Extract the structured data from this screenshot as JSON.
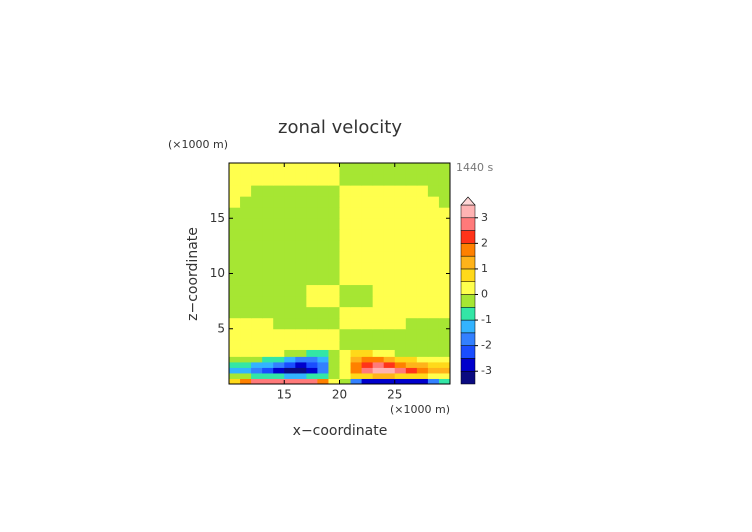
{
  "chart_data": {
    "type": "contour",
    "title": "zonal velocity",
    "x_label": "x−coordinate",
    "y_label": "z−coordinate",
    "x_unit": "(×1000 m)",
    "y_unit": "(×1000 m)",
    "time_label": "1440 s",
    "xlim": [
      10,
      30
    ],
    "ylim": [
      0,
      20
    ],
    "xticks": [
      15,
      20,
      25
    ],
    "yticks": [
      5,
      10,
      15
    ],
    "x": [
      10.5,
      11.5,
      12.5,
      13.5,
      14.5,
      15.5,
      16.5,
      17.5,
      18.5,
      19.5,
      20.5,
      21.5,
      22.5,
      23.5,
      24.5,
      25.5,
      26.5,
      27.5,
      28.5,
      29.5
    ],
    "y": [
      0.25,
      0.75,
      1.25,
      1.75,
      2.25,
      2.75,
      3.5,
      4.5,
      5.5,
      6.5,
      7.5,
      8.5,
      9.5,
      10.5,
      11.5,
      12.5,
      13.5,
      14.5,
      15.5,
      16.5,
      17.5,
      18.5,
      19.5
    ],
    "z": [
      [
        0.7,
        1.7,
        2.7,
        2.7,
        2.7,
        2.7,
        2.7,
        2.7,
        1.7,
        0.2,
        -0.2,
        -1.7,
        -2.7,
        -2.7,
        -2.7,
        -2.7,
        -2.7,
        -2.7,
        -1.7,
        -0.7
      ],
      [
        -0.2,
        -0.2,
        -0.7,
        -0.7,
        -0.7,
        -1.2,
        -1.2,
        -0.7,
        -0.7,
        -0.2,
        0.2,
        0.7,
        0.7,
        1.2,
        1.2,
        0.7,
        0.7,
        0.7,
        0.2,
        0.2
      ],
      [
        -1.2,
        -1.2,
        -1.7,
        -2.2,
        -2.7,
        -3.2,
        -3.2,
        -2.7,
        -1.7,
        -0.2,
        0.2,
        1.7,
        2.7,
        3.2,
        3.2,
        2.7,
        2.2,
        1.7,
        1.2,
        1.2
      ],
      [
        -0.7,
        -0.7,
        -1.2,
        -1.2,
        -1.7,
        -2.2,
        -2.7,
        -2.2,
        -1.7,
        -0.2,
        0.2,
        1.7,
        2.2,
        2.7,
        2.2,
        1.7,
        1.2,
        1.2,
        0.7,
        0.7
      ],
      [
        -0.2,
        -0.2,
        -0.2,
        -0.7,
        -0.7,
        -1.2,
        -1.7,
        -1.7,
        -1.2,
        -0.2,
        0.2,
        1.2,
        1.7,
        1.7,
        1.2,
        0.7,
        0.7,
        0.2,
        0.2,
        0.2
      ],
      [
        0.2,
        0.2,
        0.2,
        0.2,
        0.2,
        -0.2,
        -0.2,
        -0.7,
        -0.7,
        -0.2,
        0.2,
        0.7,
        0.7,
        0.2,
        0.2,
        -0.2,
        -0.2,
        -0.2,
        -0.2,
        -0.2
      ],
      [
        0.2,
        0.2,
        0.2,
        0.2,
        0.2,
        0.2,
        0.2,
        0.2,
        0.2,
        0.2,
        -0.2,
        -0.2,
        -0.2,
        -0.2,
        -0.2,
        -0.2,
        -0.2,
        -0.2,
        -0.2,
        -0.2
      ],
      [
        0.2,
        0.2,
        0.2,
        0.2,
        0.2,
        0.2,
        0.2,
        0.2,
        0.2,
        0.2,
        -0.2,
        -0.2,
        -0.2,
        -0.2,
        -0.2,
        -0.2,
        -0.2,
        -0.2,
        -0.2,
        -0.2
      ],
      [
        0.2,
        0.2,
        0.2,
        0.2,
        -0.2,
        -0.2,
        -0.2,
        -0.2,
        -0.2,
        -0.2,
        0.2,
        0.2,
        0.2,
        0.2,
        0.2,
        0.2,
        -0.2,
        -0.2,
        -0.2,
        -0.2
      ],
      [
        -0.2,
        -0.2,
        -0.2,
        -0.2,
        -0.2,
        -0.2,
        -0.2,
        -0.2,
        -0.2,
        -0.2,
        0.2,
        0.2,
        0.2,
        0.2,
        0.2,
        0.2,
        0.2,
        0.2,
        0.2,
        0.2
      ],
      [
        -0.2,
        -0.2,
        -0.2,
        -0.2,
        -0.2,
        -0.2,
        -0.2,
        0.2,
        0.2,
        0.2,
        -0.2,
        -0.2,
        -0.2,
        0.2,
        0.2,
        0.2,
        0.2,
        0.2,
        0.2,
        0.2
      ],
      [
        -0.2,
        -0.2,
        -0.2,
        -0.2,
        -0.2,
        -0.2,
        -0.2,
        0.2,
        0.2,
        0.2,
        -0.2,
        -0.2,
        -0.2,
        0.2,
        0.2,
        0.2,
        0.2,
        0.2,
        0.2,
        0.2
      ],
      [
        -0.2,
        -0.2,
        -0.2,
        -0.2,
        -0.2,
        -0.2,
        -0.2,
        -0.2,
        -0.2,
        -0.2,
        0.2,
        0.2,
        0.2,
        0.2,
        0.2,
        0.2,
        0.2,
        0.2,
        0.2,
        0.2
      ],
      [
        -0.2,
        -0.2,
        -0.2,
        -0.2,
        -0.2,
        -0.2,
        -0.2,
        -0.2,
        -0.2,
        -0.2,
        0.2,
        0.2,
        0.2,
        0.2,
        0.2,
        0.2,
        0.2,
        0.2,
        0.2,
        0.2
      ],
      [
        -0.2,
        -0.2,
        -0.2,
        -0.2,
        -0.2,
        -0.2,
        -0.2,
        -0.2,
        -0.2,
        -0.2,
        0.2,
        0.2,
        0.2,
        0.2,
        0.2,
        0.2,
        0.2,
        0.2,
        0.2,
        0.2
      ],
      [
        -0.2,
        -0.2,
        -0.2,
        -0.2,
        -0.2,
        -0.2,
        -0.2,
        -0.2,
        -0.2,
        -0.2,
        0.2,
        0.2,
        0.2,
        0.2,
        0.2,
        0.2,
        0.2,
        0.2,
        0.2,
        0.2
      ],
      [
        -0.2,
        -0.2,
        -0.2,
        -0.2,
        -0.2,
        -0.2,
        -0.2,
        -0.2,
        -0.2,
        -0.2,
        0.2,
        0.2,
        0.2,
        0.2,
        0.2,
        0.2,
        0.2,
        0.2,
        0.2,
        0.2
      ],
      [
        -0.2,
        -0.2,
        -0.2,
        -0.2,
        -0.2,
        -0.2,
        -0.2,
        -0.2,
        -0.2,
        -0.2,
        0.2,
        0.2,
        0.2,
        0.2,
        0.2,
        0.2,
        0.2,
        0.2,
        0.2,
        0.2
      ],
      [
        -0.2,
        -0.2,
        -0.2,
        -0.2,
        -0.2,
        -0.2,
        -0.2,
        -0.2,
        -0.2,
        -0.2,
        0.2,
        0.2,
        0.2,
        0.2,
        0.2,
        0.2,
        0.2,
        0.2,
        0.2,
        0.2
      ],
      [
        0.2,
        -0.2,
        -0.2,
        -0.2,
        -0.2,
        -0.2,
        -0.2,
        -0.2,
        -0.2,
        -0.2,
        0.2,
        0.2,
        0.2,
        0.2,
        0.2,
        0.2,
        0.2,
        0.2,
        0.2,
        -0.2
      ],
      [
        0.2,
        0.2,
        -0.2,
        -0.2,
        -0.2,
        -0.2,
        -0.2,
        -0.2,
        -0.2,
        -0.2,
        0.2,
        0.2,
        0.2,
        0.2,
        0.2,
        0.2,
        0.2,
        0.2,
        -0.2,
        -0.2
      ],
      [
        0.2,
        0.2,
        0.2,
        0.2,
        0.2,
        0.2,
        0.2,
        0.2,
        0.2,
        0.2,
        -0.2,
        -0.2,
        -0.2,
        -0.2,
        -0.2,
        -0.2,
        -0.2,
        -0.2,
        -0.2,
        -0.2
      ],
      [
        0.2,
        0.2,
        0.2,
        0.2,
        0.2,
        0.2,
        0.2,
        0.2,
        0.2,
        0.2,
        -0.2,
        -0.2,
        -0.2,
        -0.2,
        -0.2,
        -0.2,
        -0.2,
        -0.2,
        -0.2,
        -0.2
      ]
    ],
    "levels": [
      -3.5,
      -3,
      -2.5,
      -2,
      -1.5,
      -1,
      -0.5,
      0,
      0.5,
      1,
      1.5,
      2,
      2.5,
      3,
      3.5
    ],
    "colors": [
      "#0a0a80",
      "#0000cc",
      "#1a4dff",
      "#3380ff",
      "#33b3ff",
      "#33e6a6",
      "#a6e633",
      "#ffff4d",
      "#ffd91a",
      "#ffb31a",
      "#ff8000",
      "#ff3319",
      "#ff7a7a",
      "#ffb3b3"
    ],
    "extend_color": "#ffd6d6",
    "colorbar_ticks": [
      -3,
      -2,
      -1,
      0,
      1,
      2,
      3
    ]
  }
}
